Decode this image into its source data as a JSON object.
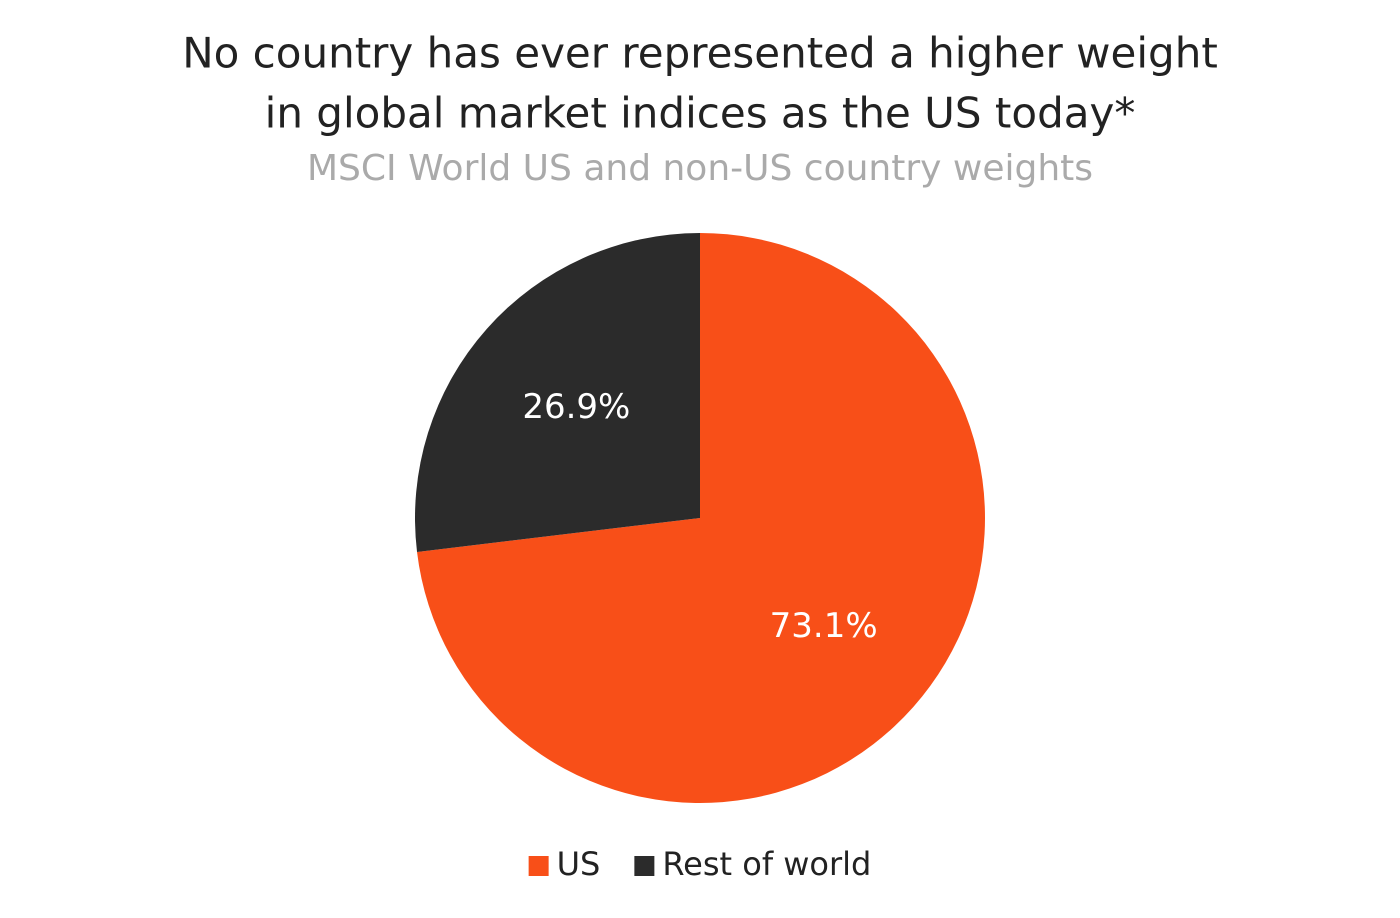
{
  "chart_data": {
    "type": "pie",
    "title": [
      "No country has ever represented a higher weight",
      "in global market indices as the US today*"
    ],
    "subtitle": "MSCI World US and non-US country weights",
    "categories": [
      "US",
      "Rest of world"
    ],
    "values": [
      73.1,
      26.9
    ],
    "value_labels": [
      "73.1%",
      "26.9%"
    ],
    "colors": [
      "#f84f18",
      "#2b2b2b"
    ],
    "legend": "bottom"
  }
}
